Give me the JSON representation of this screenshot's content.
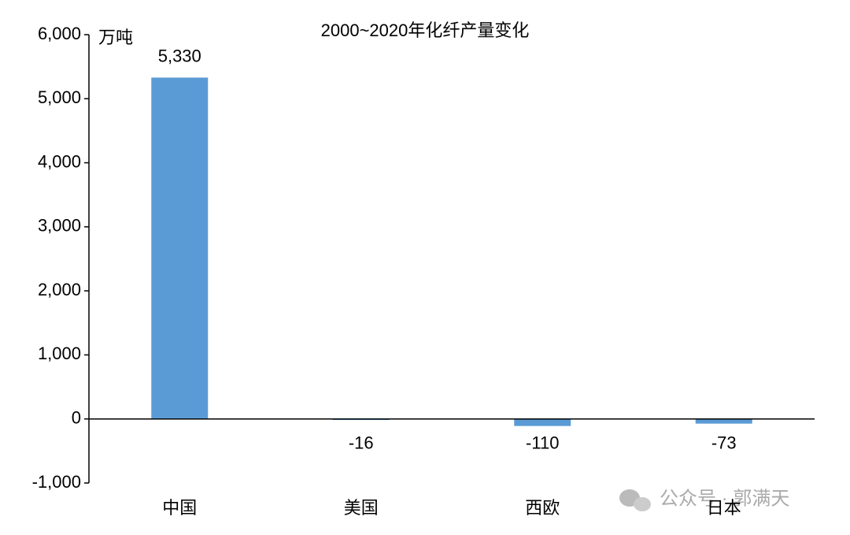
{
  "chart_data": {
    "type": "bar",
    "title": "2000~2020年化纤产量变化",
    "y_label": "万吨",
    "categories": [
      "中国",
      "美国",
      "西欧",
      "日本"
    ],
    "values": [
      5330,
      -16,
      -110,
      -73
    ],
    "value_labels": [
      "5,330",
      "-16",
      "-110",
      "-73"
    ],
    "color": "#5b9bd5",
    "ylim": [
      -1000,
      6000
    ],
    "yticks": [
      {
        "value": -1000,
        "label": "-1,000"
      },
      0,
      {
        "value": 1000,
        "label": "1,000"
      },
      {
        "value": 2000,
        "label": "2,000"
      },
      {
        "value": 3000,
        "label": "3,000"
      },
      {
        "value": 4000,
        "label": "4,000"
      },
      {
        "value": 5000,
        "label": "5,000"
      },
      {
        "value": 6000,
        "label": "6,000"
      }
    ],
    "grid": false,
    "watermark": "公众号 · 郭满天"
  }
}
